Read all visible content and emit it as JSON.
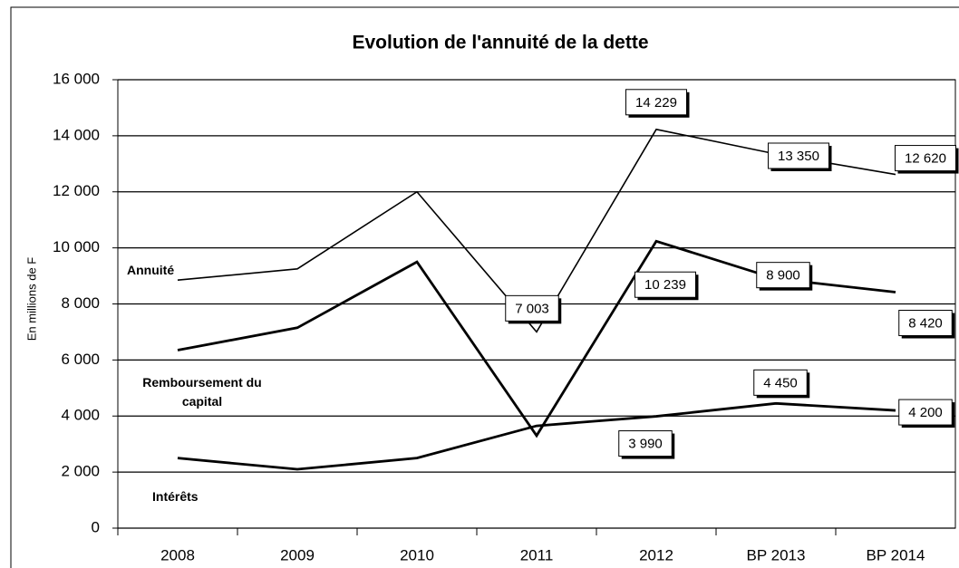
{
  "chart_data": {
    "type": "line",
    "title": "Evolution de l'annuité de la dette",
    "y_axis_label": "En millions de F",
    "categories": [
      "2008",
      "2009",
      "2010",
      "2011",
      "2012",
      "BP 2013",
      "BP 2014"
    ],
    "series": [
      {
        "name": "Annuité",
        "color": "#000000",
        "values": [
          8850,
          9250,
          12000,
          7003,
          14229,
          13350,
          12620
        ],
        "value_labels": [
          null,
          null,
          null,
          "7 003",
          "14 229",
          "13 350",
          "12 620"
        ]
      },
      {
        "name": "Remboursement du capital",
        "color": "#000000",
        "values": [
          6350,
          7150,
          9500,
          3300,
          10239,
          8900,
          8420
        ],
        "value_labels": [
          null,
          null,
          null,
          null,
          "10 239",
          "8 900",
          "8 420"
        ]
      },
      {
        "name": "Intérêts",
        "color": "#000000",
        "values": [
          2500,
          2100,
          2500,
          3650,
          3990,
          4450,
          4200
        ],
        "value_labels": [
          null,
          null,
          null,
          null,
          "3 990",
          "4 450",
          "4 200"
        ]
      }
    ],
    "ylim": [
      0,
      16000
    ],
    "yticks": [
      0,
      {
        "value": 2000,
        "label": "2 000"
      },
      {
        "value": 4000,
        "label": "4 000"
      },
      {
        "value": 6000,
        "label": "6 000"
      },
      {
        "value": 8000,
        "label": "8 000"
      },
      {
        "value": 10000,
        "label": "10 000"
      },
      {
        "value": 12000,
        "label": "12 000"
      },
      {
        "value": 14000,
        "label": "14 000"
      },
      {
        "value": 16000,
        "label": "16 000"
      }
    ],
    "grid": true
  }
}
